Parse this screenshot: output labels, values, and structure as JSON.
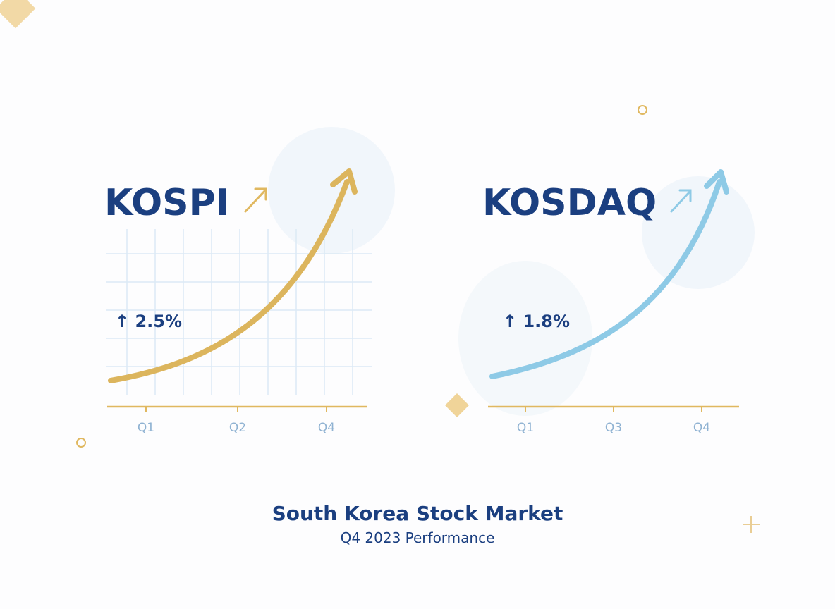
{
  "panels": [
    {
      "name": "KOSPI",
      "change": "↑ 2.5%",
      "quarters": [
        "Q1",
        "Q2",
        "Q4"
      ]
    },
    {
      "name": "KOSDAQ",
      "change": "↑ 1.8%",
      "quarters": [
        "Q1",
        "Q3",
        "Q4"
      ]
    }
  ],
  "footer": {
    "title": "South Korea Stock Market",
    "subtitle": "Q4 2023 Performance"
  }
}
